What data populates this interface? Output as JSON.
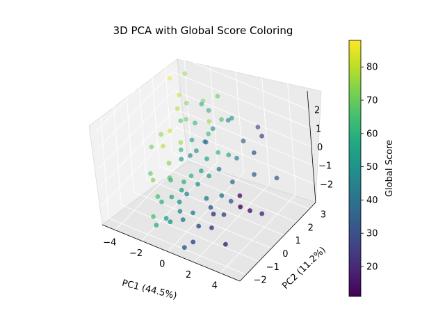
{
  "chart_data": {
    "type": "scatter",
    "title": "3D PCA with Global Score Coloring",
    "xlabel": "PC1 (44.5%)",
    "ylabel": "PC2 (11.2%)",
    "zlabel": "",
    "colorbar_label": "Global Score",
    "colormap": "viridis",
    "grid": true,
    "xlim": [
      -5,
      5.5
    ],
    "ylim": [
      -2.5,
      3.5
    ],
    "zlim": [
      -3,
      3
    ],
    "clim": [
      11,
      88
    ],
    "x_ticks": [
      -4,
      -2,
      0,
      2,
      4
    ],
    "y_ticks": [
      -2,
      -1,
      0,
      1,
      2,
      3
    ],
    "z_ticks": [
      -2,
      -1,
      0,
      1,
      2
    ],
    "colorbar_ticks": [
      20,
      30,
      40,
      50,
      60,
      70,
      80
    ],
    "points": [
      {
        "x": -4.3,
        "y": 2.6,
        "z": 1.5,
        "c": 86
      },
      {
        "x": -3.6,
        "y": 3.1,
        "z": 1.6,
        "c": 75
      },
      {
        "x": -3.2,
        "y": 2.2,
        "z": 1.2,
        "c": 80
      },
      {
        "x": -2.9,
        "y": 2.4,
        "z": 0.7,
        "c": 72
      },
      {
        "x": -3.0,
        "y": 1.8,
        "z": 0.8,
        "c": 78
      },
      {
        "x": -2.6,
        "y": 2.0,
        "z": 0.2,
        "c": 70
      },
      {
        "x": -3.4,
        "y": 1.5,
        "z": -0.3,
        "c": 82
      },
      {
        "x": -3.8,
        "y": 1.2,
        "z": -0.4,
        "c": 74
      },
      {
        "x": -3.5,
        "y": 1.0,
        "z": -0.8,
        "c": 79
      },
      {
        "x": -4.2,
        "y": 0.8,
        "z": -0.9,
        "c": 70
      },
      {
        "x": -3.9,
        "y": 0.3,
        "z": -1.9,
        "c": 68
      },
      {
        "x": -3.2,
        "y": -0.2,
        "z": -1.7,
        "c": 72
      },
      {
        "x": -2.6,
        "y": 0.5,
        "z": -1.1,
        "c": 74
      },
      {
        "x": -2.2,
        "y": 1.1,
        "z": -0.3,
        "c": 76
      },
      {
        "x": -1.6,
        "y": 1.7,
        "z": 0.5,
        "c": 60
      },
      {
        "x": -1.8,
        "y": 2.6,
        "z": 1.0,
        "c": 72
      },
      {
        "x": -1.4,
        "y": 2.1,
        "z": 1.3,
        "c": 58
      },
      {
        "x": -1.2,
        "y": 2.4,
        "z": 0.8,
        "c": 55
      },
      {
        "x": -0.8,
        "y": 2.0,
        "z": 0.6,
        "c": 76
      },
      {
        "x": -0.2,
        "y": 2.2,
        "z": 2.0,
        "c": 70
      },
      {
        "x": -0.5,
        "y": 1.6,
        "z": 0.3,
        "c": 62
      },
      {
        "x": -2.0,
        "y": 0.9,
        "z": -0.5,
        "c": 58
      },
      {
        "x": -1.6,
        "y": 0.5,
        "z": -0.6,
        "c": 50
      },
      {
        "x": -1.1,
        "y": 0.7,
        "z": -0.4,
        "c": 45
      },
      {
        "x": -1.3,
        "y": 1.1,
        "z": 0.1,
        "c": 52
      },
      {
        "x": -0.8,
        "y": 0.9,
        "z": -0.2,
        "c": 48
      },
      {
        "x": -0.4,
        "y": 1.2,
        "z": 0.2,
        "c": 44
      },
      {
        "x": -0.1,
        "y": 1.0,
        "z": 0.4,
        "c": 36
      },
      {
        "x": 0.1,
        "y": 1.4,
        "z": 0.9,
        "c": 50
      },
      {
        "x": 0.4,
        "y": 1.8,
        "z": 1.2,
        "c": 65
      },
      {
        "x": 0.6,
        "y": 2.1,
        "z": 1.0,
        "c": 42
      },
      {
        "x": 0.3,
        "y": 0.6,
        "z": -0.1,
        "c": 56
      },
      {
        "x": 0.0,
        "y": 0.4,
        "z": -0.7,
        "c": 52
      },
      {
        "x": -0.6,
        "y": 0.2,
        "z": -1.0,
        "c": 60
      },
      {
        "x": -1.0,
        "y": 0.0,
        "z": -1.3,
        "c": 58
      },
      {
        "x": -1.7,
        "y": -0.3,
        "z": -1.2,
        "c": 62
      },
      {
        "x": -2.2,
        "y": 0.1,
        "z": -1.5,
        "c": 66
      },
      {
        "x": -2.5,
        "y": -0.6,
        "z": -2.1,
        "c": 64
      },
      {
        "x": -1.9,
        "y": -0.9,
        "z": -2.0,
        "c": 60
      },
      {
        "x": -1.3,
        "y": -0.7,
        "z": -1.7,
        "c": 56
      },
      {
        "x": -0.8,
        "y": -0.4,
        "z": -1.4,
        "c": 54
      },
      {
        "x": -0.2,
        "y": -0.6,
        "z": -1.3,
        "c": 46
      },
      {
        "x": 0.3,
        "y": -0.2,
        "z": -0.9,
        "c": 50
      },
      {
        "x": 0.8,
        "y": 0.2,
        "z": -0.6,
        "c": 54
      },
      {
        "x": 1.2,
        "y": 0.6,
        "z": -0.4,
        "c": 40
      },
      {
        "x": 1.5,
        "y": 1.1,
        "z": 0.1,
        "c": 58
      },
      {
        "x": 1.8,
        "y": 1.4,
        "z": -0.2,
        "c": 44
      },
      {
        "x": 2.2,
        "y": 1.6,
        "z": 0.7,
        "c": 34
      },
      {
        "x": 2.9,
        "y": 2.1,
        "z": 1.3,
        "c": 28
      },
      {
        "x": 3.3,
        "y": 1.3,
        "z": 0.6,
        "c": 30
      },
      {
        "x": 3.8,
        "y": 1.5,
        "z": 1.5,
        "c": 27
      },
      {
        "x": 3.5,
        "y": 1.0,
        "z": -0.3,
        "c": 34
      },
      {
        "x": 4.4,
        "y": 1.8,
        "z": -0.8,
        "c": 32
      },
      {
        "x": 2.4,
        "y": 0.4,
        "z": -0.6,
        "c": 38
      },
      {
        "x": 2.0,
        "y": -0.1,
        "z": -1.1,
        "c": 40
      },
      {
        "x": 2.7,
        "y": -0.1,
        "z": -1.2,
        "c": 34
      },
      {
        "x": 3.0,
        "y": 0.3,
        "z": -1.1,
        "c": 14
      },
      {
        "x": 3.3,
        "y": 0.0,
        "z": -1.4,
        "c": 12
      },
      {
        "x": 2.6,
        "y": -0.6,
        "z": -1.6,
        "c": 28
      },
      {
        "x": 2.1,
        "y": -0.9,
        "z": -1.5,
        "c": 24
      },
      {
        "x": 1.6,
        "y": -0.6,
        "z": -1.5,
        "c": 32
      },
      {
        "x": 1.0,
        "y": -0.3,
        "z": -1.4,
        "c": 42
      },
      {
        "x": 0.6,
        "y": -1.0,
        "z": -1.8,
        "c": 46
      },
      {
        "x": 0.1,
        "y": -1.3,
        "z": -2.1,
        "c": 44
      },
      {
        "x": -0.3,
        "y": -1.1,
        "z": -1.9,
        "c": 48
      },
      {
        "x": -0.7,
        "y": -1.5,
        "z": -2.3,
        "c": 52
      },
      {
        "x": -1.1,
        "y": -1.4,
        "z": -2.3,
        "c": 56
      },
      {
        "x": -1.6,
        "y": -1.7,
        "z": -2.6,
        "c": 60
      },
      {
        "x": -2.0,
        "y": -1.5,
        "z": -2.4,
        "c": 66
      },
      {
        "x": 1.4,
        "y": -1.4,
        "z": -2.0,
        "c": 30
      },
      {
        "x": 2.2,
        "y": -1.2,
        "z": -2.0,
        "c": 26
      },
      {
        "x": 3.6,
        "y": 0.4,
        "z": -1.8,
        "c": 14
      },
      {
        "x": 4.1,
        "y": 0.8,
        "z": -2.1,
        "c": 18
      },
      {
        "x": 3.2,
        "y": -1.2,
        "z": -2.6,
        "c": 22
      },
      {
        "x": 1.3,
        "y": -1.8,
        "z": -2.6,
        "c": 30
      },
      {
        "x": 0.8,
        "y": -2.0,
        "z": -2.9,
        "c": 36
      },
      {
        "x": -0.5,
        "y": -0.9,
        "z": -1.6,
        "c": 50
      },
      {
        "x": 0.9,
        "y": 0.9,
        "z": 0.2,
        "c": 62
      },
      {
        "x": 1.1,
        "y": 1.9,
        "z": 1.4,
        "c": 52
      },
      {
        "x": -2.4,
        "y": 1.4,
        "z": 0.6,
        "c": 66
      }
    ]
  }
}
